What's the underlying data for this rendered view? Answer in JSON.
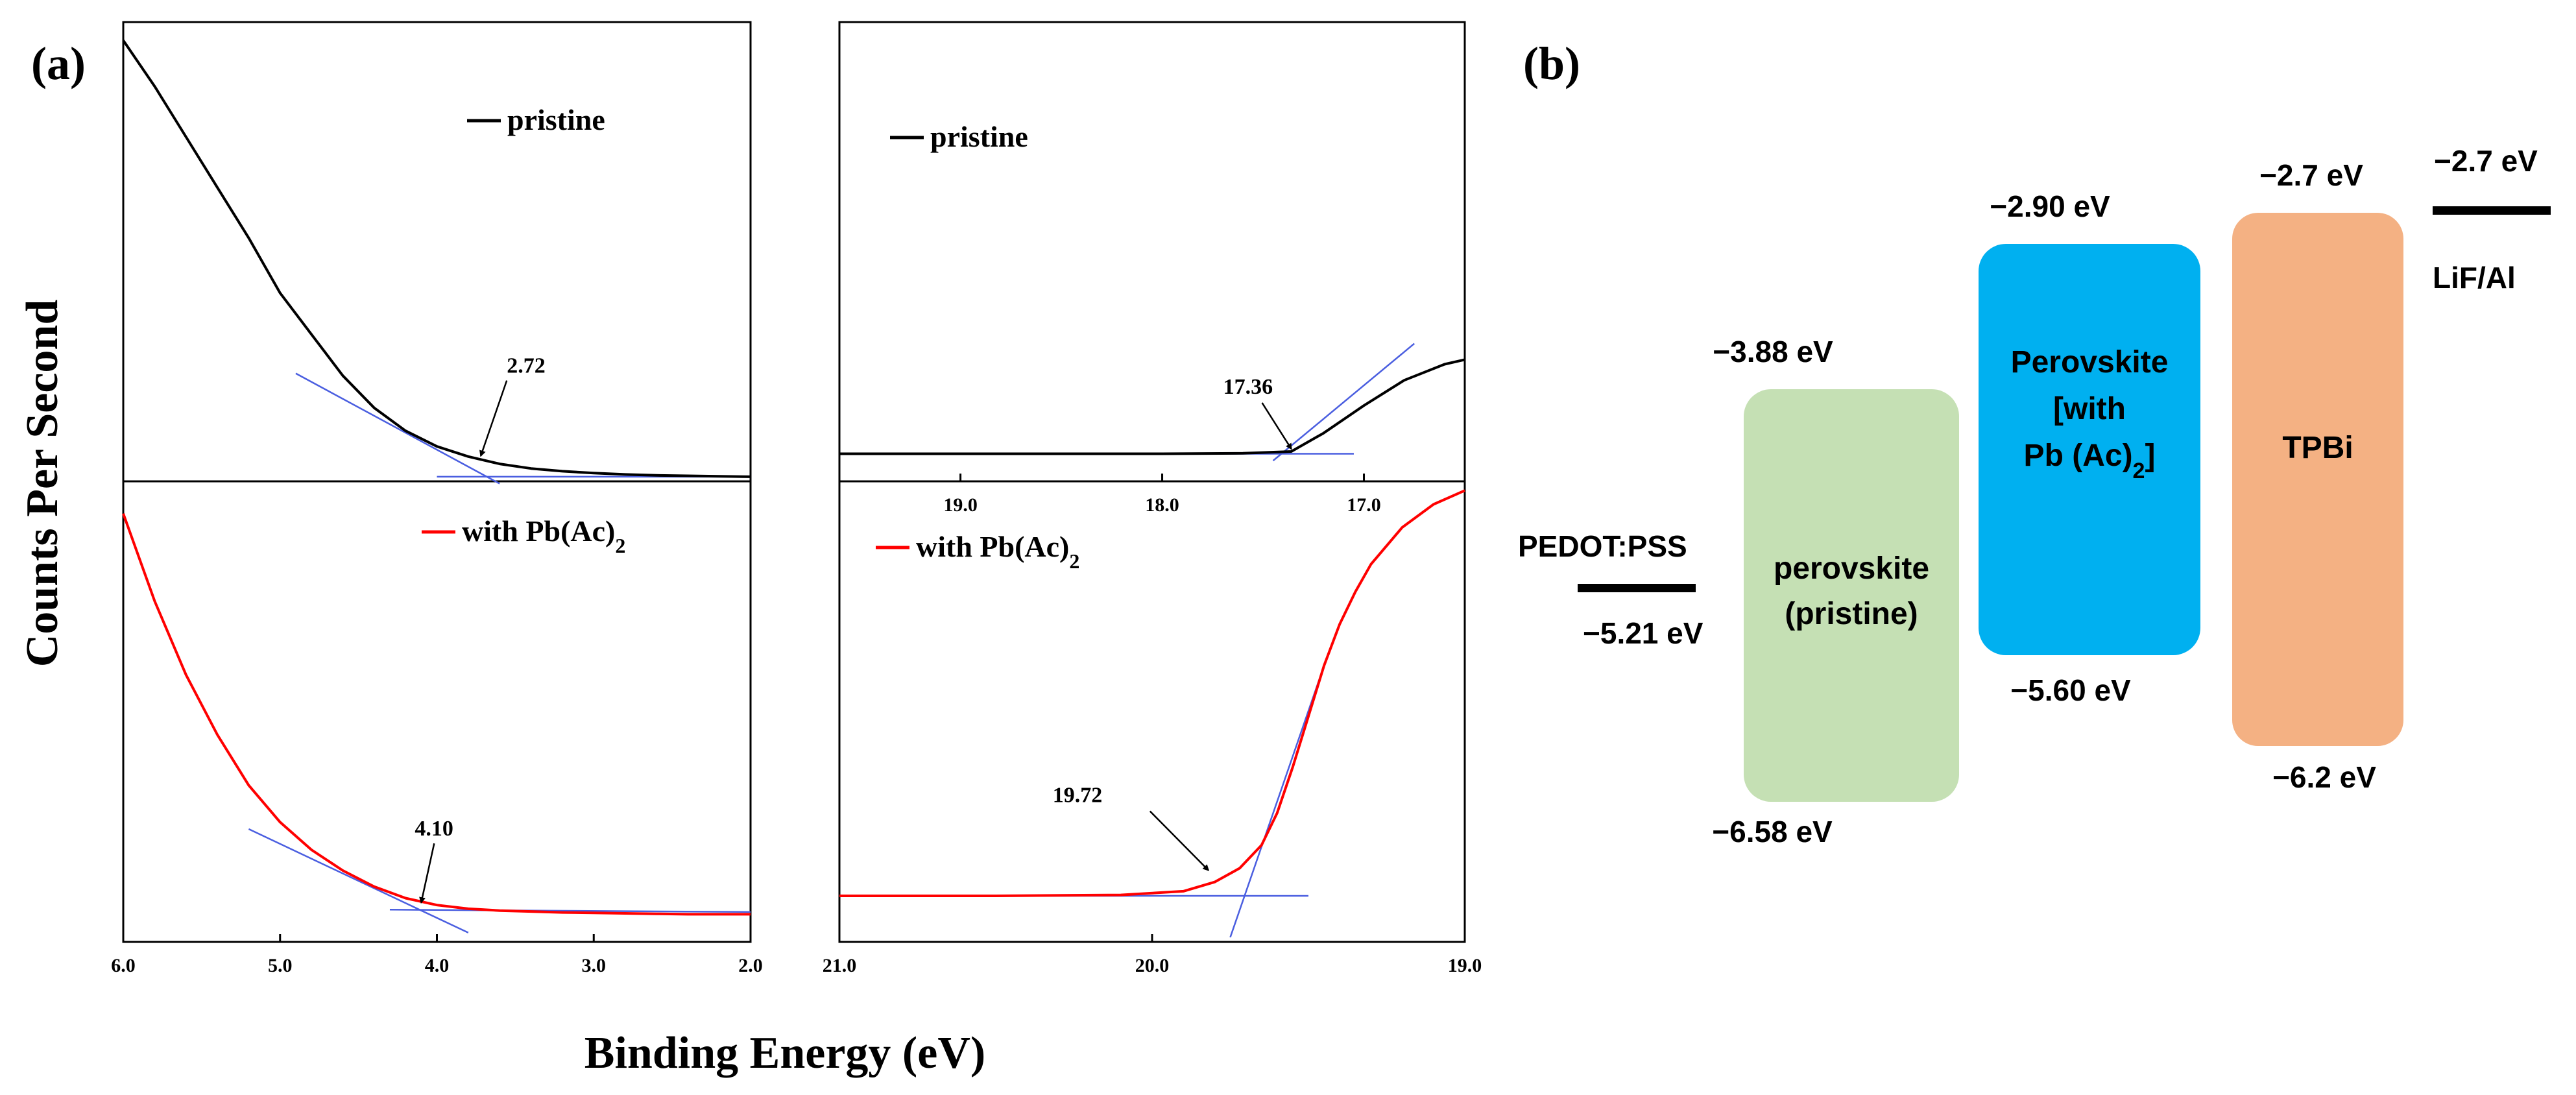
{
  "panels": {
    "a": "(a)",
    "b": "(b)"
  },
  "axes": {
    "ylabel": "Counts Per Second",
    "xlabel": "Binding Energy (eV)"
  },
  "chart_data": [
    {
      "id": "vb_pristine",
      "type": "line",
      "x_range": [
        6.0,
        2.0
      ],
      "y_range": [
        0,
        1
      ],
      "legend": "pristine",
      "legend_color": "#000000",
      "legend_position": "top-center",
      "line_color": "#000000",
      "series": {
        "name": "pristine",
        "x": [
          6.0,
          5.8,
          5.6,
          5.4,
          5.2,
          5.0,
          4.8,
          4.6,
          4.4,
          4.2,
          4.0,
          3.8,
          3.6,
          3.4,
          3.2,
          3.0,
          2.8,
          2.6,
          2.4,
          2.2,
          2.0
        ],
        "y": [
          0.96,
          0.86,
          0.75,
          0.64,
          0.53,
          0.41,
          0.32,
          0.23,
          0.16,
          0.11,
          0.076,
          0.054,
          0.038,
          0.028,
          0.022,
          0.018,
          0.015,
          0.013,
          0.012,
          0.011,
          0.01
        ]
      },
      "fit_lines": [
        {
          "x": [
            4.9,
            3.6
          ],
          "y": [
            0.235,
            -0.005
          ]
        },
        {
          "x": [
            4.0,
            2.0
          ],
          "y": [
            0.01,
            0.01
          ]
        }
      ],
      "annotation": {
        "text": "2.72",
        "x": 3.72,
        "y": 0.05
      }
    },
    {
      "id": "cutoff_pristine",
      "type": "line",
      "x_range": [
        19.6,
        16.5
      ],
      "y_range": [
        0,
        1
      ],
      "x_ticks": [
        "19.0",
        "18.0",
        "17.0"
      ],
      "x_tick_values": [
        19.0,
        18.0,
        17.0
      ],
      "legend": "pristine",
      "legend_color": "#000000",
      "legend_position": "top-left",
      "line_color": "#000000",
      "series": {
        "name": "pristine",
        "x": [
          19.6,
          19.0,
          18.5,
          18.0,
          17.6,
          17.36,
          17.2,
          17.0,
          16.8,
          16.6,
          16.5
        ],
        "y": [
          0.06,
          0.06,
          0.06,
          0.06,
          0.061,
          0.065,
          0.105,
          0.165,
          0.22,
          0.255,
          0.265
        ]
      },
      "fit_lines": [
        {
          "x": [
            17.45,
            16.75
          ],
          "y": [
            0.045,
            0.3
          ]
        },
        {
          "x": [
            19.6,
            17.05
          ],
          "y": [
            0.06,
            0.06
          ]
        }
      ],
      "annotation": {
        "text": "17.36",
        "x": 17.36,
        "y": 0.065
      }
    },
    {
      "id": "vb_pbac",
      "type": "line",
      "x_range": [
        6.0,
        2.0
      ],
      "y_range": [
        0,
        1
      ],
      "x_ticks": [
        "6.0",
        "5.0",
        "4.0",
        "3.0",
        "2.0"
      ],
      "x_tick_values": [
        6.0,
        5.0,
        4.0,
        3.0,
        2.0
      ],
      "legend": "with Pb(Ac)",
      "legend_subscript": "2",
      "legend_color": "#ff0000",
      "legend_position": "top-center",
      "line_color": "#ff0000",
      "series": {
        "name": "with Pb(Ac)2",
        "x": [
          6.0,
          5.8,
          5.6,
          5.4,
          5.2,
          5.0,
          4.8,
          4.6,
          4.4,
          4.2,
          4.0,
          3.8,
          3.6,
          3.4,
          3.2,
          3.0,
          2.8,
          2.6,
          2.4,
          2.2,
          2.0
        ],
        "y": [
          0.93,
          0.74,
          0.58,
          0.45,
          0.34,
          0.26,
          0.2,
          0.155,
          0.12,
          0.095,
          0.08,
          0.072,
          0.068,
          0.066,
          0.064,
          0.063,
          0.062,
          0.061,
          0.06,
          0.06,
          0.06
        ]
      },
      "fit_lines": [
        {
          "x": [
            5.2,
            3.8
          ],
          "y": [
            0.245,
            0.02
          ]
        },
        {
          "x": [
            4.3,
            2.0
          ],
          "y": [
            0.07,
            0.065
          ]
        }
      ],
      "annotation": {
        "text": "4.10",
        "x": 4.1,
        "y": 0.08
      }
    },
    {
      "id": "cutoff_pbac",
      "type": "line",
      "x_range": [
        21.0,
        19.0
      ],
      "y_range": [
        0,
        1
      ],
      "x_ticks": [
        "21.0",
        "20.0",
        "19.0"
      ],
      "x_tick_values": [
        21.0,
        20.0,
        19.0
      ],
      "legend": "with Pb(Ac)",
      "legend_subscript": "2",
      "legend_color": "#ff0000",
      "legend_position": "top-left",
      "line_color": "#ff0000",
      "series": {
        "name": "with Pb(Ac)2",
        "x": [
          21.0,
          20.5,
          20.1,
          19.9,
          19.8,
          19.72,
          19.65,
          19.6,
          19.55,
          19.5,
          19.45,
          19.4,
          19.35,
          19.3,
          19.2,
          19.1,
          19.0
        ],
        "y": [
          0.1,
          0.1,
          0.102,
          0.11,
          0.13,
          0.16,
          0.21,
          0.28,
          0.38,
          0.49,
          0.6,
          0.69,
          0.76,
          0.82,
          0.9,
          0.95,
          0.98
        ]
      },
      "fit_lines": [
        {
          "x": [
            19.75,
            19.45
          ],
          "y": [
            0.01,
            0.6
          ]
        },
        {
          "x": [
            21.0,
            19.5
          ],
          "y": [
            0.1,
            0.1
          ]
        }
      ],
      "annotation": {
        "text": "19.72",
        "x": 19.82,
        "y": 0.15
      }
    }
  ],
  "energy_diagram": {
    "type": "band_diagram",
    "levels": [
      {
        "name": "PEDOT:PSS",
        "energy": "−5.21 eV",
        "value": -5.21
      },
      {
        "name": "LiF/Al",
        "energy": "−2.7 eV",
        "value": -2.7
      }
    ],
    "boxes": [
      {
        "line1": "perovskite",
        "line2": "(pristine)",
        "top": "−3.88 eV",
        "bottom": "−6.58 eV",
        "top_value": -3.88,
        "bottom_value": -6.58,
        "color": "#c5e0b4"
      },
      {
        "line1": "Perovskite",
        "line2": "[with",
        "line3": "Pb (Ac)",
        "line3_sub": "2",
        "line3_tail": "]",
        "top": "−2.90 eV",
        "bottom": "−5.60 eV",
        "top_value": -2.9,
        "bottom_value": -5.6,
        "color": "#00b0f0"
      },
      {
        "line1": "TPBi",
        "top": "−2.7 eV",
        "bottom": "−6.2 eV",
        "top_value": -2.7,
        "bottom_value": -6.2,
        "color": "#f4b183"
      }
    ]
  }
}
